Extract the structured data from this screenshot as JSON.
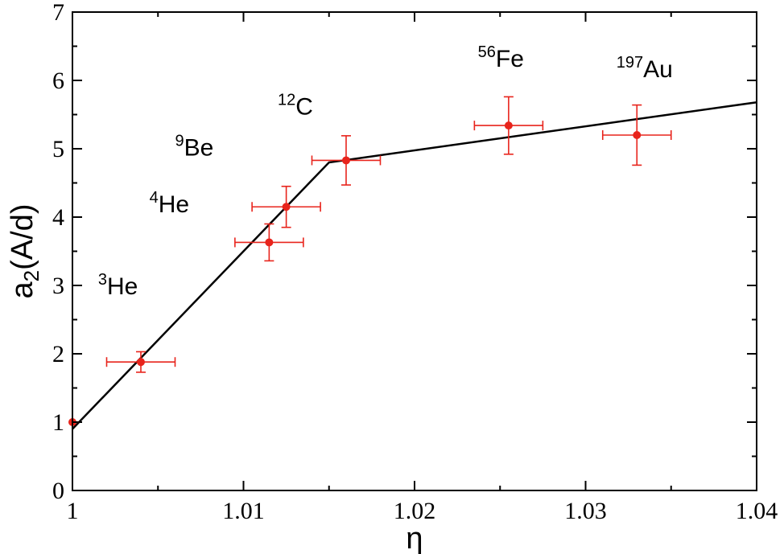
{
  "chart_data": {
    "type": "scatter",
    "title": "",
    "xlabel": "η",
    "ylabel_main": "a",
    "ylabel_sub": "2",
    "ylabel_rest": "(A/d)",
    "xlim": [
      1.0,
      1.04
    ],
    "ylim": [
      0,
      7
    ],
    "x_ticks": [
      1.0,
      1.01,
      1.02,
      1.03,
      1.04
    ],
    "x_tick_labels": [
      "1",
      "1.01",
      "1.02",
      "1.03",
      "1.04"
    ],
    "y_ticks": [
      0,
      1,
      2,
      3,
      4,
      5,
      6,
      7
    ],
    "y_tick_labels": [
      "0",
      "1",
      "2",
      "3",
      "4",
      "5",
      "6",
      "7"
    ],
    "grid": false,
    "colors": {
      "data": "#e8241c",
      "fit": "#000000",
      "axis": "#000000"
    },
    "series": [
      {
        "name": "data",
        "points": [
          {
            "x": 1.0,
            "y": 1.0,
            "xerr": 0.0,
            "yerr": 0.0
          },
          {
            "x": 1.004,
            "y": 1.88,
            "xerr": 0.002,
            "yerr": 0.15
          },
          {
            "x": 1.0115,
            "y": 3.63,
            "xerr": 0.002,
            "yerr": 0.27
          },
          {
            "x": 1.0125,
            "y": 4.15,
            "xerr": 0.002,
            "yerr": 0.3
          },
          {
            "x": 1.016,
            "y": 4.83,
            "xerr": 0.002,
            "yerr": 0.36
          },
          {
            "x": 1.0255,
            "y": 5.34,
            "xerr": 0.002,
            "yerr": 0.42
          },
          {
            "x": 1.033,
            "y": 5.2,
            "xerr": 0.002,
            "yerr": 0.44
          }
        ]
      },
      {
        "name": "fit",
        "line": [
          {
            "x": 1.0,
            "y": 0.9
          },
          {
            "x": 1.015,
            "y": 4.8
          },
          {
            "x": 1.04,
            "y": 5.68
          }
        ]
      }
    ],
    "annotations": [
      {
        "mass": "3",
        "element": "He",
        "x": 1.0015,
        "y": 2.87
      },
      {
        "mass": "4",
        "element": "He",
        "x": 1.0045,
        "y": 4.07
      },
      {
        "mass": "9",
        "element": "Be",
        "x": 1.006,
        "y": 4.9
      },
      {
        "mass": "12",
        "element": "C",
        "x": 1.012,
        "y": 5.5
      },
      {
        "mass": "56",
        "element": "Fe",
        "x": 1.0237,
        "y": 6.2
      },
      {
        "mass": "197",
        "element": "Au",
        "x": 1.0318,
        "y": 6.05
      }
    ]
  }
}
